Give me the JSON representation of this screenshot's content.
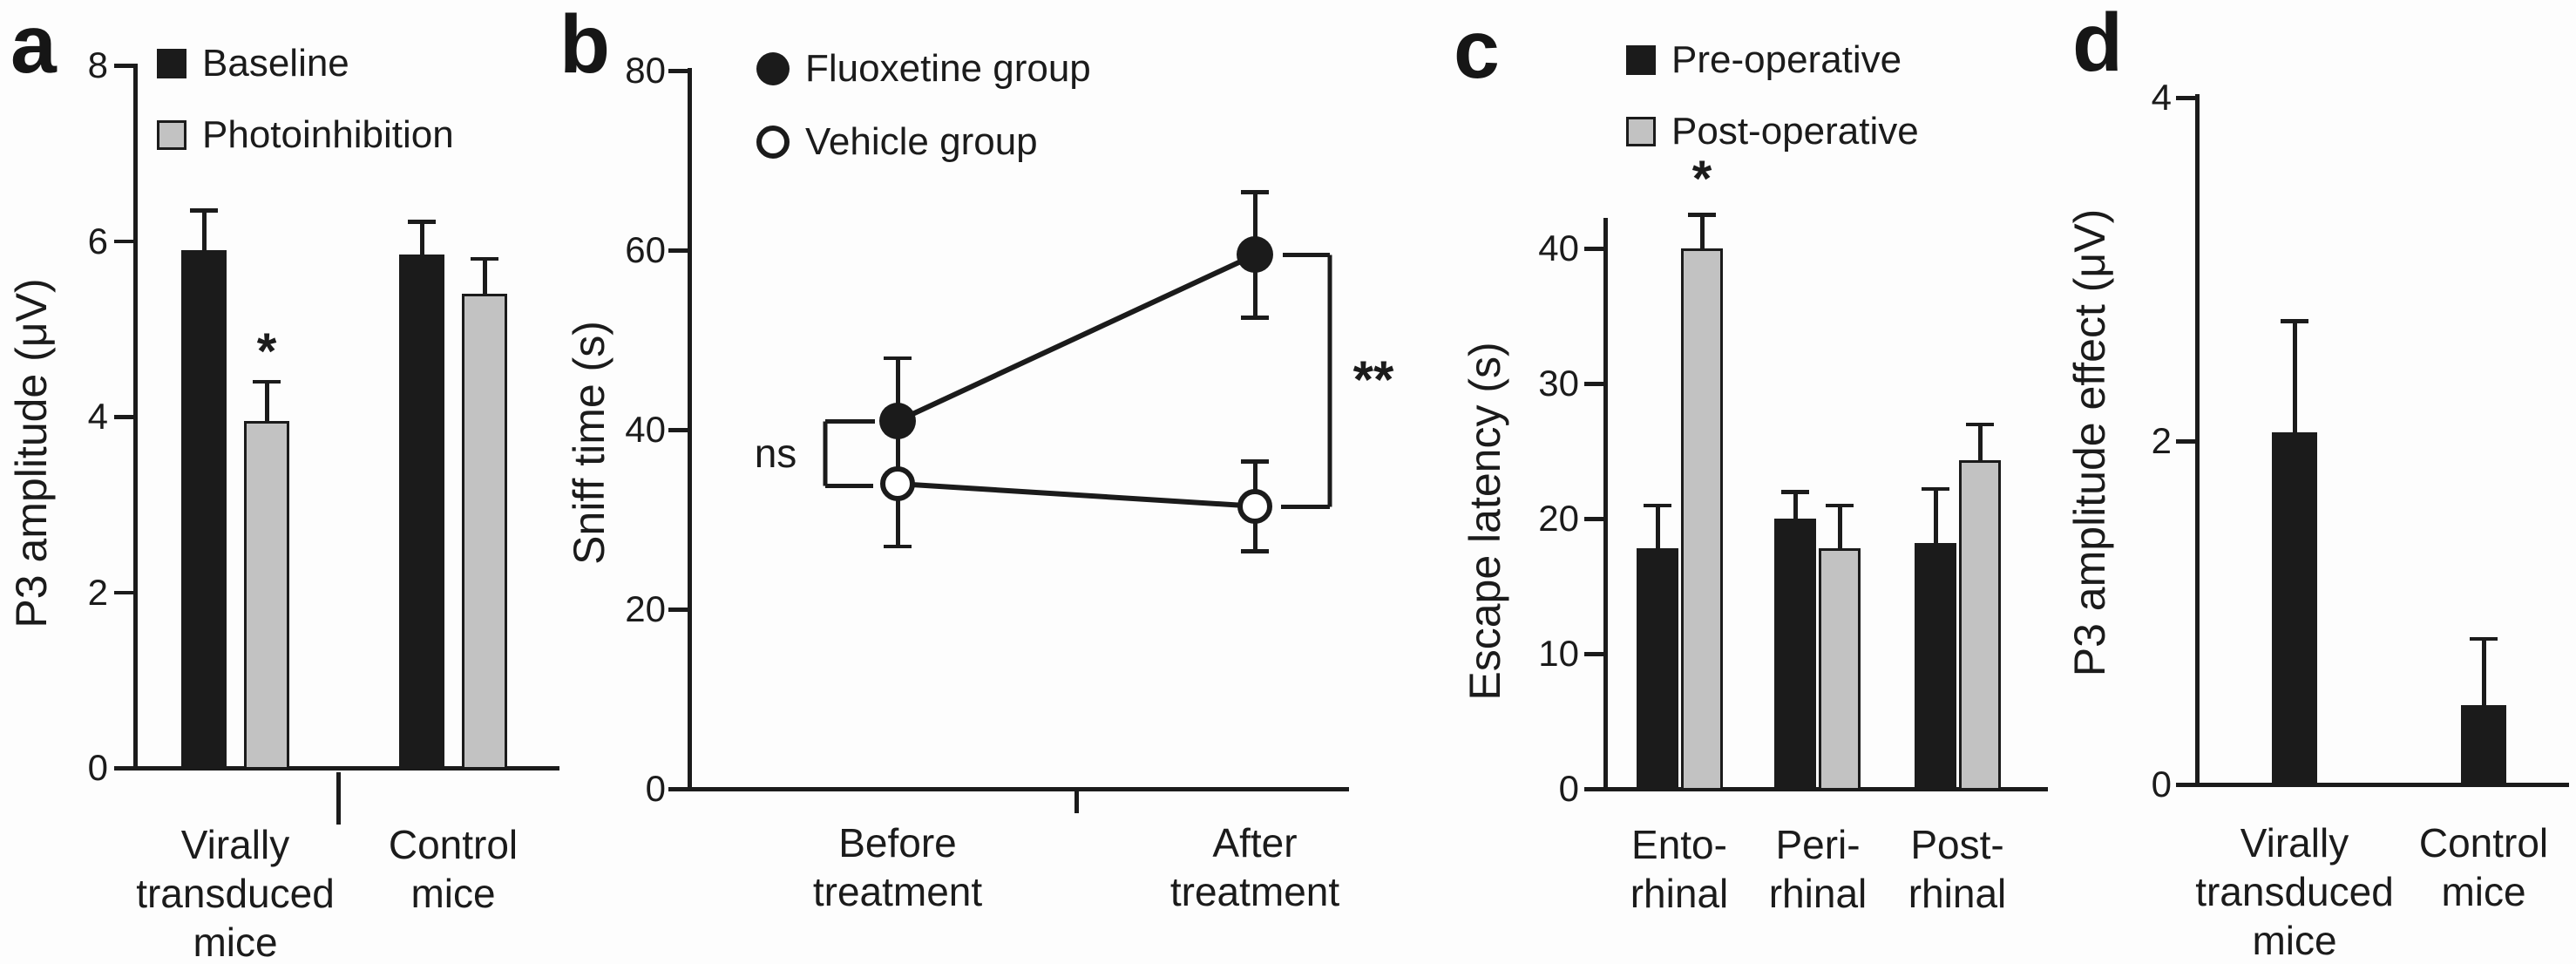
{
  "figure": {
    "background": "#fdfdfd",
    "ink_color": "#1b1b1b",
    "gray_fill": "#c2c2c2",
    "panel_letters": [
      "a",
      "b",
      "c",
      "d"
    ]
  },
  "chart_data": [
    {
      "id": "a",
      "type": "bar",
      "panel_label": "a",
      "ylabel": "P3 amplitude (μV)",
      "xlabel": "",
      "ylim": [
        0,
        8
      ],
      "yticks": [
        0,
        2,
        4,
        6,
        8
      ],
      "grid": false,
      "legend_position": "top-left-inside",
      "categories": [
        "Virally transduced mice",
        "Control mice"
      ],
      "category_lines": [
        [
          "Virally",
          "transduced",
          "mice"
        ],
        [
          "Control",
          "mice"
        ]
      ],
      "legend": [
        {
          "label": "Baseline",
          "swatch": "black-square"
        },
        {
          "label": "Photoinhibition",
          "swatch": "gray-square"
        }
      ],
      "series": [
        {
          "name": "Baseline",
          "color": "black",
          "values": [
            5.9,
            5.85
          ],
          "errors_up": [
            0.45,
            0.37
          ]
        },
        {
          "name": "Photoinhibition",
          "color": "gray",
          "values": [
            3.95,
            5.4
          ],
          "errors_up": [
            0.45,
            0.4
          ]
        }
      ],
      "annotations": [
        {
          "text": "*",
          "meaning": "significant difference",
          "series": "Photoinhibition",
          "category": "Virally transduced mice"
        }
      ]
    },
    {
      "id": "b",
      "type": "line",
      "panel_label": "b",
      "ylabel": "Sniff time (s)",
      "xlabel": "",
      "ylim": [
        0,
        80
      ],
      "yticks": [
        0,
        20,
        40,
        60,
        80
      ],
      "grid": false,
      "legend_position": "top-left-inside",
      "categories": [
        "Before treatment",
        "After treatment"
      ],
      "category_lines": [
        [
          "Before",
          "treatment"
        ],
        [
          "After",
          "treatment"
        ]
      ],
      "legend": [
        {
          "label": "Fluoxetine group",
          "marker": "filled-circle"
        },
        {
          "label": "Vehicle group",
          "marker": "open-circle"
        }
      ],
      "series": [
        {
          "name": "Fluoxetine group",
          "marker": "filled",
          "values": [
            41,
            59.5
          ],
          "errors_up": [
            7,
            7
          ],
          "errors_down": [
            6.5,
            7
          ]
        },
        {
          "name": "Vehicle group",
          "marker": "open",
          "values": [
            34,
            31.5
          ],
          "errors_up": [
            0,
            5
          ],
          "errors_down": [
            7,
            5
          ]
        }
      ],
      "annotations": [
        {
          "text": "ns",
          "meaning": "not significant",
          "location": "before treatment comparison"
        },
        {
          "text": "**",
          "meaning": "highly significant",
          "location": "after treatment comparison"
        }
      ]
    },
    {
      "id": "c",
      "type": "bar",
      "panel_label": "c",
      "ylabel": "Escape latency (s)",
      "xlabel": "",
      "ylim": [
        0,
        45
      ],
      "yticks": [
        0,
        10,
        20,
        30,
        40
      ],
      "grid": false,
      "legend_position": "top-left-inside",
      "categories": [
        "Ento-rhinal",
        "Peri-rhinal",
        "Post-rhinal"
      ],
      "category_lines": [
        [
          "Ento-",
          "rhinal"
        ],
        [
          "Peri-",
          "rhinal"
        ],
        [
          "Post-",
          "rhinal"
        ]
      ],
      "legend": [
        {
          "label": "Pre-operative",
          "swatch": "black-square"
        },
        {
          "label": "Post-operative",
          "swatch": "gray-square"
        }
      ],
      "series": [
        {
          "name": "Pre-operative",
          "color": "black",
          "values": [
            17.8,
            20,
            18.2
          ],
          "errors_up": [
            3.2,
            2,
            4
          ]
        },
        {
          "name": "Post-operative",
          "color": "gray",
          "values": [
            40,
            17.8,
            24.3
          ],
          "errors_up": [
            2.5,
            3.2,
            2.7
          ]
        }
      ],
      "annotations": [
        {
          "text": "*",
          "meaning": "significant difference",
          "series": "Post-operative",
          "category": "Ento-rhinal"
        }
      ]
    },
    {
      "id": "d",
      "type": "bar",
      "panel_label": "d",
      "ylabel": "P3 amplitude effect (μV)",
      "xlabel": "",
      "ylim": [
        0,
        4
      ],
      "yticks": [
        0,
        2,
        4
      ],
      "grid": false,
      "legend_position": "none",
      "categories": [
        "Virally transduced mice",
        "Control mice"
      ],
      "category_lines": [
        [
          "Virally",
          "transduced",
          "mice"
        ],
        [
          "Control",
          "mice"
        ]
      ],
      "legend": [],
      "series": [
        {
          "name": "P3 amplitude effect",
          "color": "black",
          "values": [
            2.05,
            0.46
          ],
          "errors_up": [
            0.65,
            0.39
          ]
        }
      ],
      "annotations": []
    }
  ]
}
